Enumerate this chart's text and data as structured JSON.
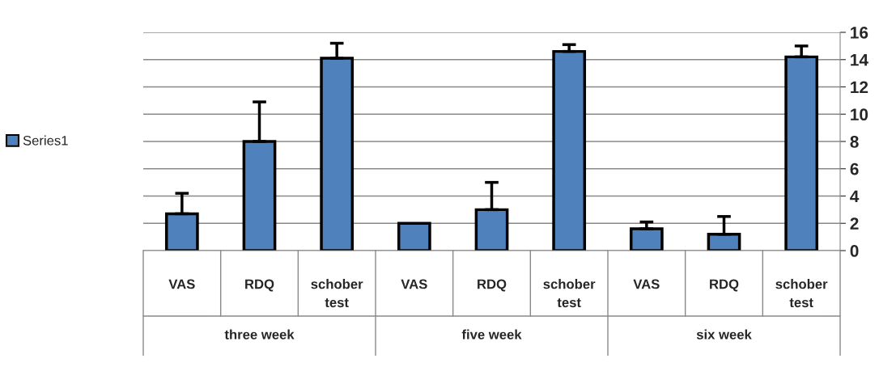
{
  "chart_data": {
    "type": "bar",
    "categories": [
      "VAS",
      "RDQ",
      "schober test",
      "VAS",
      "RDQ",
      "schober test",
      "VAS",
      "RDQ",
      "schober test"
    ],
    "series": [
      {
        "name": "Series1",
        "color": "#4f81bd",
        "values": [
          2.7,
          8.0,
          14.1,
          2.0,
          3.0,
          14.6,
          1.6,
          1.2,
          14.2
        ],
        "errors": [
          [
            2.7,
            4.2
          ],
          [
            8.0,
            10.9
          ],
          [
            14.1,
            15.2
          ],
          null,
          [
            3.0,
            5.0
          ],
          [
            14.6,
            15.1
          ],
          [
            1.6,
            2.1
          ],
          [
            1.2,
            2.5
          ],
          [
            14.2,
            15.0
          ]
        ]
      }
    ],
    "annotations": [
      "three week",
      "five week",
      "six week"
    ],
    "ylim": [
      0,
      16
    ],
    "yticks": [
      0,
      2,
      4,
      6,
      8,
      10,
      12,
      14,
      16
    ],
    "grid": "y",
    "legend": "left"
  }
}
